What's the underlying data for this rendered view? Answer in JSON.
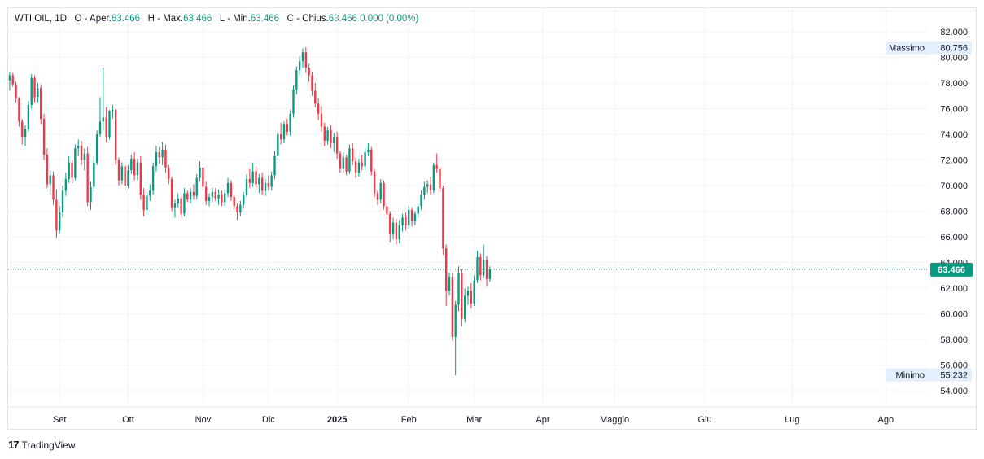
{
  "legend": {
    "symbol": "WTI OIL",
    "interval": "1D",
    "open_label": "O - Aper.",
    "open_value": "63.466",
    "high_label": "H - Max.",
    "high_value": "63.466",
    "low_label": "L - Min.",
    "low_value": "63.466",
    "close_label": "C - Chius.",
    "close_value": "63.466",
    "change": "0.000 (0.00%)"
  },
  "brand": {
    "name": "TradingView",
    "logo_text": "17"
  },
  "colors": {
    "up": "#089981",
    "down": "#f23645",
    "grid": "#f0f3fa",
    "price_line": "#089981",
    "label_bg": "#e3effd"
  },
  "chart_data": {
    "type": "candlestick",
    "title": "WTI OIL",
    "interval": "1D",
    "ylim": [
      52.0,
      83.5
    ],
    "y_ticks": [
      "54.000",
      "56.000",
      "58.000",
      "60.000",
      "62.000",
      "64.000",
      "66.000",
      "68.000",
      "70.000",
      "72.000",
      "74.000",
      "76.000",
      "78.000",
      "80.000",
      "82.000"
    ],
    "x_labels": [
      {
        "label": "Set",
        "index": 16,
        "bold": false
      },
      {
        "label": "Ott",
        "index": 38,
        "bold": false
      },
      {
        "label": "Nov",
        "index": 62,
        "bold": false
      },
      {
        "label": "Dic",
        "index": 83,
        "bold": false
      },
      {
        "label": "2025",
        "index": 105,
        "bold": true
      },
      {
        "label": "Feb",
        "index": 128,
        "bold": false
      },
      {
        "label": "Mar",
        "index": 149,
        "bold": false
      },
      {
        "label": "Apr",
        "index": 171,
        "bold": false
      },
      {
        "label": "Maggio",
        "index": 194,
        "bold": false
      },
      {
        "label": "Giu",
        "index": 223,
        "bold": false
      },
      {
        "label": "Lug",
        "index": 251,
        "bold": false
      },
      {
        "label": "Ago",
        "index": 281,
        "bold": false
      }
    ],
    "total_slots": 295,
    "last_price": "63.466",
    "last_price_value": 63.466,
    "max_label": "Massimo",
    "max_value": "80.756",
    "max_value_num": 80.756,
    "min_label": "Minimo",
    "min_value": "55.232",
    "min_value_num": 55.232,
    "candles": [
      [
        78.2,
        78.9,
        77.4,
        78.6
      ],
      [
        78.6,
        78.8,
        77.7,
        77.9
      ],
      [
        77.9,
        78.1,
        76.5,
        76.8
      ],
      [
        76.8,
        76.9,
        74.6,
        75.0
      ],
      [
        75.0,
        75.2,
        73.2,
        73.8
      ],
      [
        73.8,
        74.7,
        73.1,
        74.4
      ],
      [
        74.4,
        76.6,
        74.2,
        76.3
      ],
      [
        76.3,
        78.7,
        76.0,
        78.4
      ],
      [
        78.4,
        78.6,
        76.5,
        76.9
      ],
      [
        76.9,
        78.0,
        76.5,
        77.6
      ],
      [
        77.6,
        77.9,
        74.8,
        75.2
      ],
      [
        75.2,
        75.6,
        72.0,
        72.4
      ],
      [
        72.4,
        72.9,
        69.8,
        70.1
      ],
      [
        70.1,
        71.2,
        69.3,
        70.8
      ],
      [
        70.8,
        71.1,
        68.5,
        68.9
      ],
      [
        68.9,
        69.7,
        65.9,
        66.5
      ],
      [
        66.5,
        68.4,
        66.3,
        67.9
      ],
      [
        67.9,
        70.0,
        67.5,
        69.6
      ],
      [
        69.6,
        71.0,
        69.2,
        70.5
      ],
      [
        70.5,
        72.3,
        70.2,
        71.8
      ],
      [
        71.8,
        72.0,
        70.2,
        70.6
      ],
      [
        70.6,
        73.2,
        70.4,
        72.9
      ],
      [
        72.9,
        73.6,
        72.3,
        73.1
      ],
      [
        73.1,
        73.5,
        71.6,
        72.0
      ],
      [
        72.0,
        72.9,
        71.2,
        72.5
      ],
      [
        72.5,
        73.0,
        68.4,
        68.7
      ],
      [
        68.7,
        70.3,
        68.1,
        69.9
      ],
      [
        69.9,
        72.3,
        69.5,
        71.8
      ],
      [
        71.8,
        74.3,
        71.6,
        74.0
      ],
      [
        74.0,
        76.9,
        73.8,
        75.0
      ],
      [
        75.0,
        79.2,
        74.3,
        75.3
      ],
      [
        75.3,
        76.1,
        73.4,
        73.8
      ],
      [
        73.8,
        75.9,
        73.6,
        75.8
      ],
      [
        75.8,
        76.3,
        75.2,
        75.9
      ],
      [
        75.9,
        76.0,
        71.6,
        72.0
      ],
      [
        72.0,
        72.2,
        70.0,
        70.4
      ],
      [
        70.4,
        71.8,
        70.1,
        71.5
      ],
      [
        71.5,
        71.8,
        69.6,
        70.0
      ],
      [
        70.0,
        71.6,
        69.8,
        71.2
      ],
      [
        71.2,
        72.4,
        70.9,
        72.1
      ],
      [
        72.1,
        72.6,
        70.4,
        70.8
      ],
      [
        70.8,
        72.1,
        70.4,
        71.8
      ],
      [
        71.8,
        72.3,
        68.9,
        69.3
      ],
      [
        69.3,
        69.8,
        67.6,
        68.1
      ],
      [
        68.1,
        69.5,
        67.8,
        69.2
      ],
      [
        69.2,
        70.1,
        68.8,
        69.6
      ],
      [
        69.6,
        71.8,
        69.3,
        71.5
      ],
      [
        71.5,
        73.1,
        71.1,
        72.6
      ],
      [
        72.6,
        73.0,
        71.7,
        72.2
      ],
      [
        72.2,
        73.4,
        71.6,
        72.8
      ],
      [
        72.8,
        73.2,
        71.0,
        71.4
      ],
      [
        71.4,
        71.6,
        70.1,
        70.5
      ],
      [
        70.5,
        70.7,
        68.0,
        68.3
      ],
      [
        68.3,
        68.9,
        67.5,
        68.6
      ],
      [
        68.6,
        69.4,
        68.3,
        69.0
      ],
      [
        69.0,
        69.2,
        67.5,
        67.8
      ],
      [
        67.8,
        69.8,
        67.6,
        69.4
      ],
      [
        69.4,
        69.6,
        68.7,
        68.9
      ],
      [
        68.9,
        69.8,
        68.6,
        69.5
      ],
      [
        69.5,
        70.1,
        68.9,
        69.2
      ],
      [
        69.2,
        70.9,
        68.9,
        70.6
      ],
      [
        70.6,
        71.9,
        70.3,
        71.4
      ],
      [
        71.4,
        71.7,
        69.6,
        69.9
      ],
      [
        69.9,
        70.3,
        68.5,
        68.8
      ],
      [
        68.8,
        69.4,
        68.4,
        69.1
      ],
      [
        69.1,
        69.8,
        68.7,
        69.5
      ],
      [
        69.5,
        69.8,
        68.8,
        69.0
      ],
      [
        69.0,
        69.7,
        68.5,
        69.3
      ],
      [
        69.3,
        69.6,
        68.4,
        68.7
      ],
      [
        68.7,
        69.7,
        68.4,
        69.4
      ],
      [
        69.4,
        70.6,
        69.1,
        70.2
      ],
      [
        70.2,
        70.4,
        68.8,
        69.1
      ],
      [
        69.1,
        69.3,
        68.1,
        68.4
      ],
      [
        68.4,
        68.6,
        67.3,
        67.9
      ],
      [
        67.9,
        68.8,
        67.6,
        68.5
      ],
      [
        68.5,
        69.5,
        68.2,
        69.3
      ],
      [
        69.3,
        70.9,
        69.1,
        70.5
      ],
      [
        70.5,
        71.3,
        69.8,
        70.2
      ],
      [
        70.2,
        71.8,
        69.9,
        71.1
      ],
      [
        71.1,
        71.5,
        69.8,
        70.1
      ],
      [
        70.1,
        70.9,
        69.4,
        70.6
      ],
      [
        70.6,
        71.0,
        69.3,
        69.6
      ],
      [
        69.6,
        70.5,
        69.2,
        70.2
      ],
      [
        70.2,
        70.8,
        69.6,
        69.9
      ],
      [
        69.9,
        71.1,
        69.6,
        70.8
      ],
      [
        70.8,
        72.7,
        70.5,
        72.3
      ],
      [
        72.3,
        74.3,
        72.0,
        74.0
      ],
      [
        74.0,
        74.9,
        73.2,
        73.6
      ],
      [
        73.6,
        75.0,
        73.3,
        74.8
      ],
      [
        74.8,
        75.2,
        73.9,
        74.2
      ],
      [
        74.2,
        75.9,
        73.9,
        75.6
      ],
      [
        75.6,
        77.8,
        75.3,
        77.5
      ],
      [
        77.5,
        79.3,
        77.1,
        79.0
      ],
      [
        79.0,
        80.1,
        78.6,
        79.7
      ],
      [
        79.7,
        80.7,
        79.2,
        80.4
      ],
      [
        80.4,
        80.8,
        78.8,
        79.2
      ],
      [
        79.2,
        79.5,
        78.1,
        78.6
      ],
      [
        78.6,
        78.9,
        77.0,
        77.4
      ],
      [
        77.4,
        78.0,
        76.1,
        76.4
      ],
      [
        76.4,
        76.8,
        75.1,
        75.6
      ],
      [
        75.6,
        76.2,
        74.2,
        74.6
      ],
      [
        74.6,
        74.9,
        73.1,
        73.5
      ],
      [
        73.5,
        74.6,
        73.2,
        74.3
      ],
      [
        74.3,
        74.7,
        72.9,
        73.3
      ],
      [
        73.3,
        74.1,
        72.6,
        73.8
      ],
      [
        73.8,
        74.2,
        72.1,
        72.5
      ],
      [
        72.5,
        72.7,
        71.0,
        71.3
      ],
      [
        71.3,
        72.6,
        71.0,
        72.2
      ],
      [
        72.2,
        72.4,
        70.8,
        71.1
      ],
      [
        71.1,
        73.2,
        70.9,
        72.9
      ],
      [
        72.9,
        73.3,
        71.6,
        71.9
      ],
      [
        71.9,
        72.2,
        70.6,
        71.0
      ],
      [
        71.0,
        72.1,
        70.7,
        71.8
      ],
      [
        71.8,
        72.4,
        71.2,
        71.5
      ],
      [
        71.5,
        72.9,
        71.2,
        72.6
      ],
      [
        72.6,
        73.3,
        72.3,
        72.8
      ],
      [
        72.8,
        73.0,
        70.8,
        71.1
      ],
      [
        71.1,
        71.3,
        69.1,
        69.4
      ],
      [
        69.4,
        69.6,
        68.5,
        68.9
      ],
      [
        68.9,
        70.5,
        68.6,
        70.2
      ],
      [
        70.2,
        70.4,
        68.1,
        68.4
      ],
      [
        68.4,
        68.6,
        67.4,
        67.8
      ],
      [
        67.8,
        68.0,
        65.6,
        66.2
      ],
      [
        66.2,
        67.5,
        65.8,
        67.1
      ],
      [
        67.1,
        67.4,
        65.4,
        65.8
      ],
      [
        65.8,
        67.3,
        65.5,
        66.9
      ],
      [
        66.9,
        67.8,
        66.4,
        67.5
      ],
      [
        67.5,
        67.9,
        66.5,
        66.9
      ],
      [
        66.9,
        68.4,
        66.6,
        68.1
      ],
      [
        68.1,
        68.3,
        66.8,
        67.2
      ],
      [
        67.2,
        68.0,
        66.9,
        67.8
      ],
      [
        67.8,
        68.6,
        67.5,
        68.4
      ],
      [
        68.4,
        69.6,
        68.1,
        69.3
      ],
      [
        69.3,
        70.3,
        68.9,
        69.9
      ],
      [
        69.9,
        70.4,
        69.4,
        70.1
      ],
      [
        70.1,
        70.7,
        69.3,
        69.6
      ],
      [
        69.6,
        71.8,
        69.4,
        71.6
      ],
      [
        71.6,
        72.5,
        71.0,
        71.3
      ],
      [
        71.3,
        71.5,
        69.5,
        69.8
      ],
      [
        69.8,
        70.0,
        64.6,
        65.1
      ],
      [
        65.1,
        65.4,
        60.6,
        61.8
      ],
      [
        61.8,
        63.2,
        61.4,
        62.9
      ],
      [
        62.9,
        63.2,
        57.9,
        58.2
      ],
      [
        58.2,
        61.0,
        55.2,
        60.7
      ],
      [
        60.7,
        63.7,
        60.2,
        63.2
      ],
      [
        63.2,
        63.5,
        59.0,
        59.6
      ],
      [
        59.6,
        62.0,
        59.3,
        61.4
      ],
      [
        61.4,
        62.1,
        60.7,
        61.8
      ],
      [
        61.8,
        62.4,
        60.4,
        60.8
      ],
      [
        60.8,
        63.0,
        60.6,
        62.6
      ],
      [
        62.6,
        64.9,
        62.4,
        64.4
      ],
      [
        64.4,
        64.7,
        62.6,
        63.0
      ],
      [
        63.0,
        65.4,
        62.8,
        64.2
      ],
      [
        64.2,
        64.5,
        62.1,
        62.7
      ],
      [
        62.7,
        63.7,
        62.5,
        63.466
      ]
    ]
  }
}
